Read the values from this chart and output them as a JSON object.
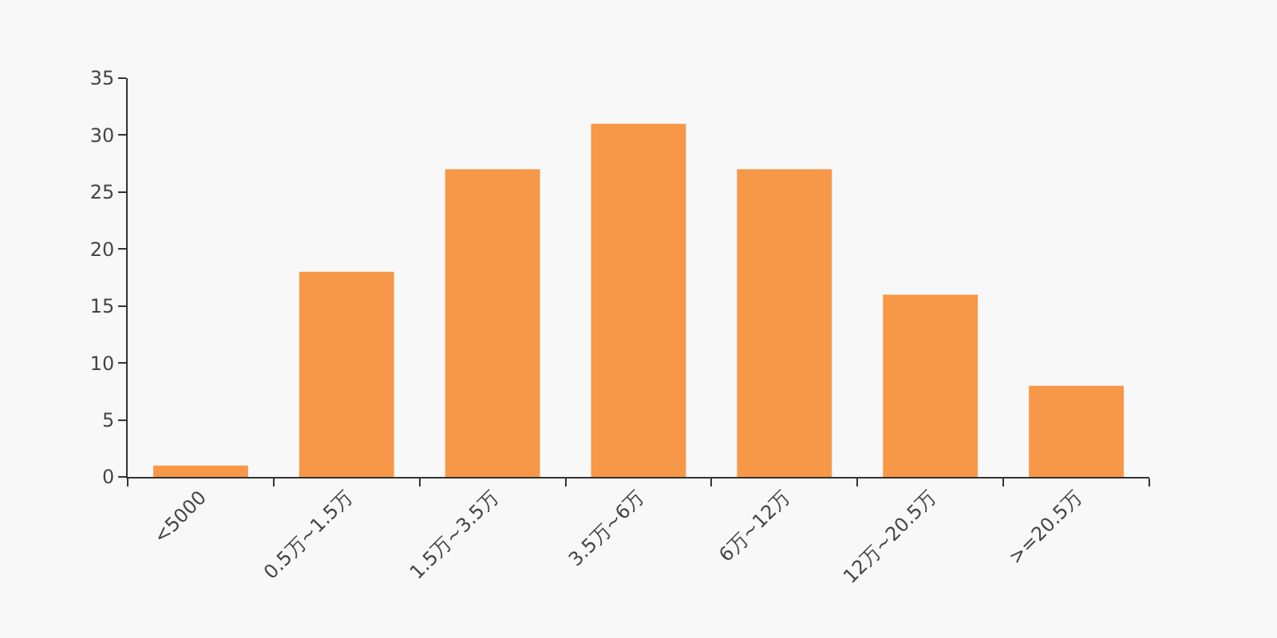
{
  "chart_data": {
    "type": "bar",
    "categories": [
      "<5000",
      "0.5万~1.5万",
      "1.5万~3.5万",
      "3.5万~6万",
      "6万~12万",
      "12万~20.5万",
      ">=20.5万"
    ],
    "values": [
      1,
      18,
      27,
      31,
      27,
      16,
      8
    ],
    "color": "#f79848",
    "ylim": [
      0,
      35
    ],
    "yticks": [
      0,
      5,
      10,
      15,
      20,
      25,
      30,
      35
    ],
    "grid": false
  }
}
